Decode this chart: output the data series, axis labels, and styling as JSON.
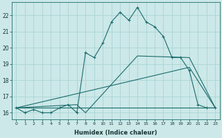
{
  "xlabel": "Humidex (Indice chaleur)",
  "bg_color": "#cce8e8",
  "grid_color": "#aad4d4",
  "line_color": "#1a6b6b",
  "xlim": [
    -0.5,
    23.5
  ],
  "ylim": [
    15.6,
    22.8
  ],
  "xticks": [
    0,
    1,
    2,
    3,
    4,
    5,
    6,
    7,
    8,
    9,
    10,
    11,
    12,
    13,
    14,
    15,
    16,
    17,
    18,
    19,
    20,
    21,
    22,
    23
  ],
  "yticks": [
    16,
    17,
    18,
    19,
    20,
    21,
    22
  ],
  "line1_x": [
    0,
    1,
    2,
    3,
    4,
    5,
    6,
    7,
    8,
    9,
    10,
    11,
    12,
    13,
    14,
    15,
    16,
    17,
    18,
    19,
    20,
    21,
    22,
    23
  ],
  "line1_y": [
    16.3,
    16.0,
    16.2,
    16.0,
    16.0,
    16.3,
    16.5,
    16.0,
    19.7,
    19.4,
    20.3,
    21.6,
    22.2,
    21.7,
    22.5,
    21.6,
    21.3,
    20.7,
    19.4,
    19.4,
    18.6,
    16.5,
    16.3,
    16.3
  ],
  "line2_x": [
    0,
    7,
    8,
    14,
    20,
    23
  ],
  "line2_y": [
    16.3,
    16.5,
    16.0,
    19.5,
    19.4,
    16.3
  ],
  "line3_x": [
    0,
    23
  ],
  "line3_y": [
    16.3,
    16.3
  ],
  "line4_x": [
    0,
    20,
    23
  ],
  "line4_y": [
    16.3,
    18.8,
    16.3
  ]
}
